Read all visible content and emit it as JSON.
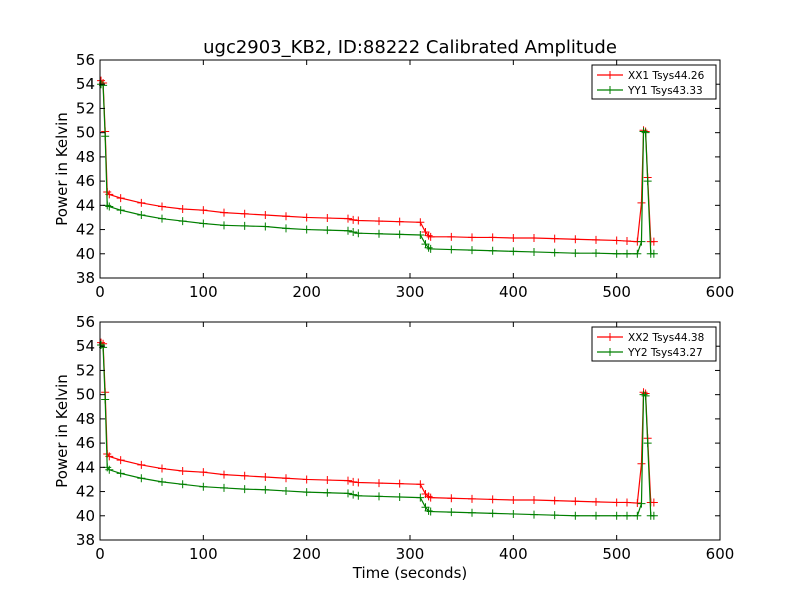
{
  "figure": {
    "title": "ugc2903_KB2, ID:88222 Calibrated Amplitude",
    "xlabel": "Time (seconds)"
  },
  "chart_data": [
    {
      "type": "line",
      "title": "ugc2903_KB2, ID:88222 Calibrated Amplitude",
      "xlabel": "",
      "ylabel": "Power in Kelvin",
      "xlim": [
        0,
        600
      ],
      "ylim": [
        38,
        56
      ],
      "xticks": [
        0,
        100,
        200,
        300,
        400,
        500,
        600
      ],
      "yticks": [
        38,
        40,
        42,
        44,
        46,
        48,
        50,
        52,
        54,
        56
      ],
      "grid": false,
      "legend_position": "top-right",
      "series": [
        {
          "name": "XX1 Tsys44.26",
          "color": "#ff0000",
          "marker": "+",
          "x": [
            1,
            3,
            5,
            7,
            9,
            20,
            40,
            60,
            80,
            100,
            120,
            140,
            160,
            180,
            200,
            220,
            240,
            245,
            250,
            270,
            290,
            310,
            315,
            318,
            320,
            340,
            360,
            380,
            400,
            420,
            440,
            460,
            480,
            500,
            510,
            520,
            524,
            526,
            528,
            530,
            533,
            536
          ],
          "y": [
            54.3,
            54.1,
            50.1,
            45.1,
            44.9,
            44.6,
            44.2,
            43.9,
            43.7,
            43.6,
            43.4,
            43.3,
            43.2,
            43.1,
            43.0,
            42.95,
            42.9,
            42.8,
            42.75,
            42.7,
            42.65,
            42.6,
            41.8,
            41.5,
            41.4,
            41.4,
            41.35,
            41.35,
            41.3,
            41.3,
            41.25,
            41.2,
            41.15,
            41.1,
            41.05,
            41.0,
            44.2,
            50.2,
            50.1,
            46.3,
            41.0,
            41.0
          ]
        },
        {
          "name": "YY1 Tsys43.33",
          "color": "#007f00",
          "marker": "+",
          "x": [
            1,
            3,
            5,
            7,
            9,
            20,
            40,
            60,
            80,
            100,
            120,
            140,
            160,
            180,
            200,
            220,
            240,
            245,
            250,
            270,
            290,
            310,
            315,
            318,
            320,
            340,
            360,
            380,
            400,
            420,
            440,
            460,
            480,
            500,
            510,
            520,
            524,
            526,
            528,
            530,
            533,
            536
          ],
          "y": [
            54.0,
            53.9,
            49.7,
            44.0,
            43.9,
            43.6,
            43.2,
            42.9,
            42.7,
            42.5,
            42.35,
            42.3,
            42.25,
            42.1,
            42.0,
            41.95,
            41.9,
            41.8,
            41.7,
            41.65,
            41.6,
            41.55,
            40.8,
            40.5,
            40.4,
            40.35,
            40.3,
            40.25,
            40.2,
            40.15,
            40.1,
            40.05,
            40.05,
            40.0,
            40.0,
            40.0,
            41.0,
            50.1,
            50.0,
            46.0,
            40.0,
            40.0
          ]
        }
      ]
    },
    {
      "type": "line",
      "title": "",
      "xlabel": "Time (seconds)",
      "ylabel": "Power in Kelvin",
      "xlim": [
        0,
        600
      ],
      "ylim": [
        38,
        56
      ],
      "xticks": [
        0,
        100,
        200,
        300,
        400,
        500,
        600
      ],
      "yticks": [
        38,
        40,
        42,
        44,
        46,
        48,
        50,
        52,
        54,
        56
      ],
      "grid": false,
      "legend_position": "top-right",
      "series": [
        {
          "name": "XX2 Tsys44.38",
          "color": "#ff0000",
          "marker": "+",
          "x": [
            1,
            3,
            5,
            7,
            9,
            20,
            40,
            60,
            80,
            100,
            120,
            140,
            160,
            180,
            200,
            220,
            240,
            245,
            250,
            270,
            290,
            310,
            315,
            318,
            320,
            340,
            360,
            380,
            400,
            420,
            440,
            460,
            480,
            500,
            510,
            520,
            524,
            526,
            528,
            530,
            533,
            536
          ],
          "y": [
            54.3,
            54.2,
            50.2,
            45.1,
            44.9,
            44.6,
            44.2,
            43.9,
            43.7,
            43.6,
            43.4,
            43.3,
            43.2,
            43.1,
            43.0,
            42.95,
            42.9,
            42.8,
            42.75,
            42.7,
            42.65,
            42.6,
            41.8,
            41.6,
            41.5,
            41.45,
            41.4,
            41.35,
            41.3,
            41.3,
            41.25,
            41.2,
            41.15,
            41.1,
            41.1,
            41.05,
            44.3,
            50.2,
            50.1,
            46.4,
            41.1,
            41.1
          ]
        },
        {
          "name": "YY2 Tsys43.27",
          "color": "#007f00",
          "marker": "+",
          "x": [
            1,
            3,
            5,
            7,
            9,
            20,
            40,
            60,
            80,
            100,
            120,
            140,
            160,
            180,
            200,
            220,
            240,
            245,
            250,
            270,
            290,
            310,
            315,
            318,
            320,
            340,
            360,
            380,
            400,
            420,
            440,
            460,
            480,
            500,
            510,
            520,
            524,
            526,
            528,
            530,
            533,
            536
          ],
          "y": [
            54.1,
            53.9,
            49.6,
            44.0,
            43.8,
            43.5,
            43.1,
            42.8,
            42.6,
            42.4,
            42.3,
            42.2,
            42.15,
            42.05,
            41.95,
            41.9,
            41.85,
            41.75,
            41.65,
            41.6,
            41.55,
            41.5,
            40.7,
            40.4,
            40.35,
            40.3,
            40.25,
            40.2,
            40.15,
            40.1,
            40.05,
            40.0,
            40.0,
            40.0,
            40.0,
            40.0,
            41.0,
            50.0,
            49.9,
            46.0,
            40.0,
            40.0
          ]
        }
      ]
    }
  ]
}
